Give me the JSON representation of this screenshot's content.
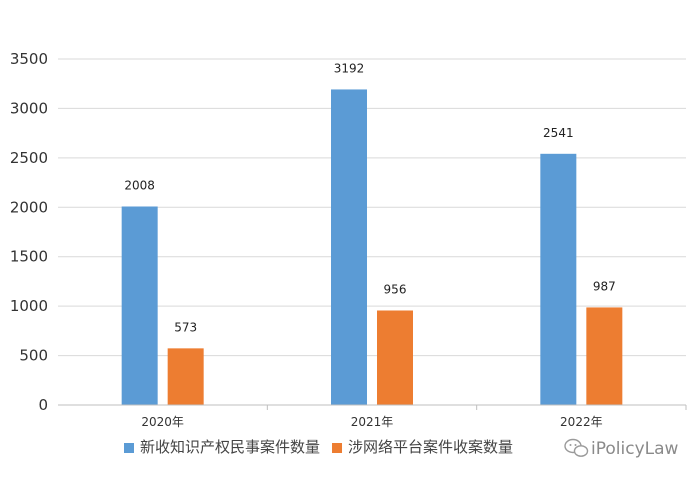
{
  "chart_data": {
    "type": "bar",
    "categories": [
      "2020年",
      "2021年",
      "2022年"
    ],
    "series": [
      {
        "name": "新收知识产权民事案件数量",
        "color": "#5b9bd5",
        "values": [
          2008,
          3192,
          2541
        ]
      },
      {
        "name": "涉网络平台案件收案数量",
        "color": "#ed7d31",
        "values": [
          573,
          956,
          987
        ]
      }
    ],
    "ylim": [
      0,
      3500
    ],
    "yticks": [
      0,
      500,
      1000,
      1500,
      2000,
      2500,
      3000,
      3500
    ],
    "grid": true,
    "legend": "bottom"
  },
  "watermark": {
    "text": "iPolicyLaw",
    "icon": "wechat-icon"
  }
}
